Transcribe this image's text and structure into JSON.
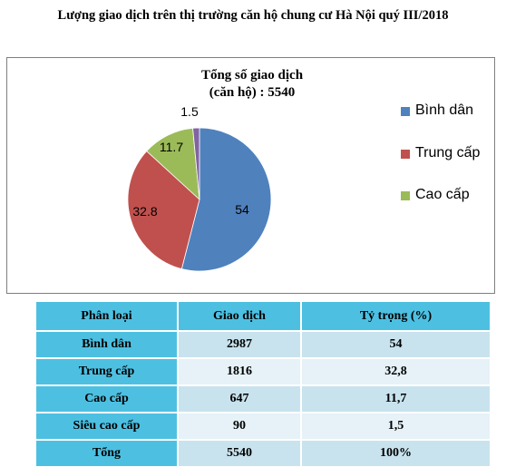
{
  "page_title": "Lượng giao dịch trên thị trường căn hộ chung cư Hà Nội quý III/2018",
  "chart_data": {
    "type": "pie",
    "title_line1": "Tổng số giao dịch",
    "title_line2": "(căn hộ) : 5540",
    "slices": [
      {
        "name": "Bình dân",
        "value": 54,
        "label": "54",
        "color": "#4f81bd"
      },
      {
        "name": "Trung cấp",
        "value": 32.8,
        "label": "32.8",
        "color": "#c0504d"
      },
      {
        "name": "Cao cấp",
        "value": 11.7,
        "label": "11.7",
        "color": "#9bbb59"
      },
      {
        "name": "",
        "value": 1.5,
        "label": "1.5",
        "color": "#8064a2"
      }
    ],
    "legend": [
      {
        "label": "Bình dân",
        "color": "#4f81bd"
      },
      {
        "label": "Trung cấp",
        "color": "#c0504d"
      },
      {
        "label": "Cao cấp",
        "color": "#9bbb59"
      }
    ],
    "legend_position": "right"
  },
  "table": {
    "headers": [
      "Phân loại",
      "Giao dịch",
      "Tỷ trọng (%)"
    ],
    "rows": [
      [
        "Bình dân",
        "2987",
        "54"
      ],
      [
        "Trung cấp",
        "1816",
        "32,8"
      ],
      [
        "Cao cấp",
        "647",
        "11,7"
      ],
      [
        "Siêu cao cấp",
        "90",
        "1,5"
      ],
      [
        "Tổng",
        "5540",
        "100%"
      ]
    ]
  }
}
